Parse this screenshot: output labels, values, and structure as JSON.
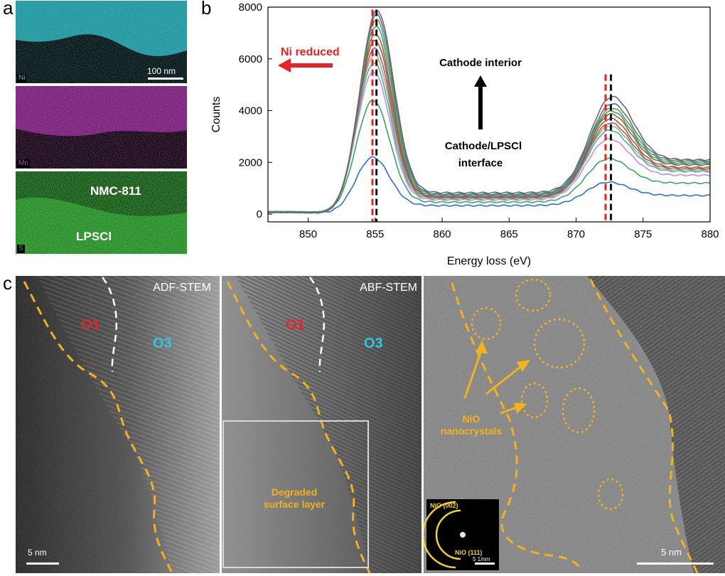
{
  "panel_labels": {
    "a": "a",
    "b": "b",
    "c": "c"
  },
  "panel_a": {
    "maps": [
      {
        "tag": "Ni",
        "color": "#39c9d3"
      },
      {
        "tag": "Mn",
        "color": "#c63ac6"
      },
      {
        "tag": "S",
        "color": "#2fae2a"
      }
    ],
    "scale_label": "100 nm",
    "region_labels": {
      "top": "NMC-811",
      "bottom": "LPSCl"
    }
  },
  "chart_data": {
    "type": "line",
    "xlabel": "Energy loss (eV)",
    "ylabel": "Counts",
    "xlim": [
      847,
      880
    ],
    "ylim": [
      -300,
      8000
    ],
    "x_ticks": [
      850,
      855,
      860,
      865,
      870,
      875,
      880
    ],
    "y_ticks": [
      0,
      2000,
      4000,
      6000,
      8000
    ],
    "reference_lines": [
      {
        "x": 854.8,
        "color": "#e8232a",
        "style": "dashed"
      },
      {
        "x": 855.1,
        "color": "#111111",
        "style": "dashed"
      },
      {
        "x": 872.2,
        "color": "#e8232a",
        "style": "dashed"
      },
      {
        "x": 872.6,
        "color": "#111111",
        "style": "dashed"
      }
    ],
    "annotations": {
      "ni_reduced": "Ni reduced",
      "cathode_interior": "Cathode interior",
      "interface_line1": "Cathode/LPSCl",
      "interface_line2": "interface"
    },
    "colors": {
      "ni_reduced": "#e8232a",
      "arrow": "#000000"
    },
    "series": [
      {
        "color": "#2f6fd6",
        "peak1": 2200,
        "peak2": 1080,
        "base": 300,
        "tail": 720
      },
      {
        "color": "#3aa85a",
        "peak1": 4400,
        "peak2": 1900,
        "base": 420,
        "tail": 1200
      },
      {
        "color": "#c98be8",
        "peak1": 5500,
        "peak2": 2600,
        "base": 500,
        "tail": 1500
      },
      {
        "color": "#2fb8c4",
        "peak1": 5850,
        "peak2": 2900,
        "base": 540,
        "tail": 1650
      },
      {
        "color": "#e0a32a",
        "peak1": 6150,
        "peak2": 3050,
        "base": 560,
        "tail": 1700
      },
      {
        "color": "#5b6fd1",
        "peak1": 6400,
        "peak2": 3150,
        "base": 580,
        "tail": 1750
      },
      {
        "color": "#d44a2a",
        "peak1": 6700,
        "peak2": 3300,
        "base": 600,
        "tail": 1800
      },
      {
        "color": "#8a6a2a",
        "peak1": 6950,
        "peak2": 3450,
        "base": 620,
        "tail": 1900
      },
      {
        "color": "#35a0a0",
        "peak1": 7250,
        "peak2": 3550,
        "base": 650,
        "tail": 1950
      },
      {
        "color": "#7a9a2a",
        "peak1": 7500,
        "peak2": 3650,
        "base": 680,
        "tail": 2000
      },
      {
        "color": "#4a78b8",
        "peak1": 7700,
        "peak2": 3800,
        "base": 700,
        "tail": 2050
      },
      {
        "color": "#6a6a6a",
        "peak1": 7850,
        "peak2": 4050,
        "base": 750,
        "tail": 2100
      }
    ]
  },
  "panel_c": {
    "images": [
      {
        "label": "ADF-STEM"
      },
      {
        "label": "ABF-STEM"
      }
    ],
    "phase_labels": {
      "o1": "O1",
      "o3": "O3"
    },
    "phase_colors": {
      "o1": "#e8232a",
      "o3": "#2fc7e0"
    },
    "degraded_label_line1": "Degraded",
    "degraded_label_line2": "surface layer",
    "nio_label_line1": "NiO",
    "nio_label_line2": "nanocrystals",
    "scale_label_left": "5 nm",
    "scale_label_right": "5 nm",
    "fft": {
      "ring1": "NiO (002)",
      "ring2": "NiO (111)",
      "scale": "5 1/nm"
    },
    "accent": "#f3b11b"
  }
}
